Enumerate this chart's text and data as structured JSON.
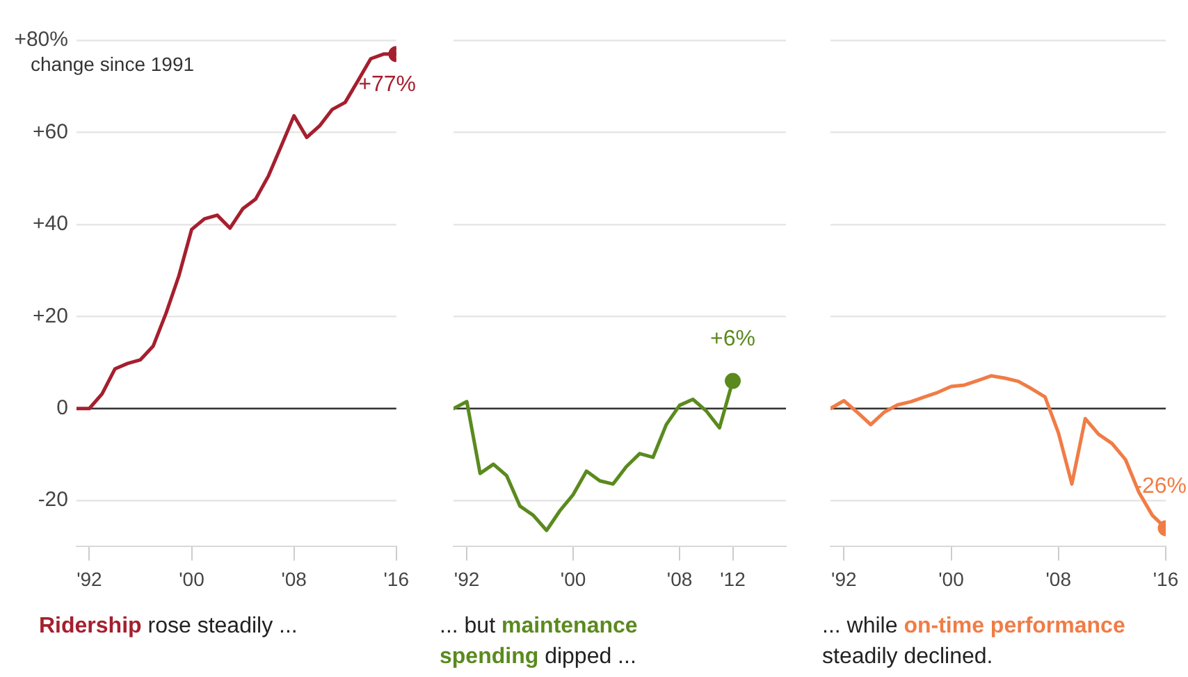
{
  "chart_data": [
    {
      "type": "line",
      "annotations": [
        "rose steadily ..."
      ],
      "ylabel": "change since 1991",
      "x": [
        1991,
        1992,
        1993,
        1994,
        1995,
        1996,
        1997,
        1998,
        1999,
        2000,
        2001,
        2002,
        2003,
        2004,
        2005,
        2006,
        2007,
        2008,
        2009,
        2010,
        2011,
        2012,
        2013,
        2014,
        2015,
        2016
      ],
      "series": [
        {
          "name": "Ridership",
          "color": "#a51f2e",
          "values": [
            0,
            0,
            3.2,
            8.6,
            9.8,
            10.6,
            13.6,
            20.7,
            28.8,
            38.9,
            41.2,
            42,
            39.2,
            43.4,
            45.5,
            50.5,
            57,
            63.6,
            58.9,
            61.4,
            65,
            66.5,
            71.2,
            76,
            77,
            77
          ],
          "value_labels": [
            null,
            null,
            null,
            null,
            null,
            null,
            null,
            null,
            null,
            null,
            null,
            null,
            null,
            null,
            null,
            null,
            null,
            null,
            null,
            null,
            null,
            null,
            null,
            null,
            null,
            "+77%"
          ]
        }
      ],
      "xlim": [
        1991,
        2016
      ],
      "xticks": [
        {
          "value": 1992,
          "label": "'92"
        },
        {
          "value": 2000,
          "label": "'00"
        },
        {
          "value": 2008,
          "label": "'08"
        },
        {
          "value": 2016,
          "label": "'16"
        }
      ],
      "ylim": [
        -30,
        80
      ],
      "yticks": [
        {
          "value": -20,
          "label": "-20"
        },
        0,
        {
          "value": 20,
          "label": "+20"
        },
        {
          "value": 40,
          "label": "+40"
        },
        {
          "value": 60,
          "label": "+60"
        },
        {
          "value": 80,
          "label": "+80%"
        }
      ],
      "grid": "y",
      "ref_lines": [
        {
          "axis": "y",
          "value": 0,
          "color": "#333333"
        }
      ]
    },
    {
      "type": "line",
      "annotations": [
        "... but",
        "dipped ..."
      ],
      "x": [
        1991,
        1992,
        1993,
        1994,
        1995,
        1996,
        1997,
        1998,
        1999,
        2000,
        2001,
        2002,
        2003,
        2004,
        2005,
        2006,
        2007,
        2008,
        2009,
        2010,
        2011,
        2012
      ],
      "series": [
        {
          "name": "maintenance spending",
          "color": "#5a8a1e",
          "values": [
            0,
            1.5,
            -14.1,
            -12.1,
            -14.6,
            -21.2,
            -23.2,
            -26.5,
            -22.2,
            -18.7,
            -13.6,
            -15.7,
            -16.4,
            -12.6,
            -9.8,
            -10.6,
            -3.5,
            0.7,
            2,
            -0.5,
            -4.2,
            6
          ],
          "value_labels": [
            null,
            null,
            null,
            null,
            null,
            null,
            null,
            null,
            null,
            null,
            null,
            null,
            null,
            null,
            null,
            null,
            null,
            null,
            null,
            null,
            null,
            "+6%"
          ]
        }
      ],
      "xlim": [
        1991,
        2016
      ],
      "xticks": [
        {
          "value": 1992,
          "label": "'92"
        },
        {
          "value": 2000,
          "label": "'00"
        },
        {
          "value": 2008,
          "label": "'08"
        },
        {
          "value": 2012,
          "label": "'12"
        }
      ],
      "ylim": [
        -30,
        80
      ],
      "yticks": [
        -20,
        0,
        20,
        40,
        60,
        80
      ],
      "tick_labels": "x",
      "grid": "y",
      "ref_lines": [
        {
          "axis": "y",
          "value": 0,
          "color": "#333333"
        }
      ]
    },
    {
      "type": "line",
      "annotations": [
        "... while",
        "steadily declined."
      ],
      "x": [
        1991,
        1992,
        1993,
        1994,
        1995,
        1996,
        1997,
        1998,
        1999,
        2000,
        2001,
        2002,
        2003,
        2004,
        2005,
        2006,
        2007,
        2008,
        2009,
        2010,
        2011,
        2012,
        2013,
        2014,
        2015,
        2016
      ],
      "series": [
        {
          "name": "on-time performance",
          "color": "#f07c46",
          "values": [
            0,
            1.7,
            -0.8,
            -3.5,
            -0.8,
            0.8,
            1.5,
            2.5,
            3.5,
            4.8,
            5.1,
            6.1,
            7.1,
            6.6,
            5.9,
            4.3,
            2.5,
            -5.3,
            -16.4,
            -2.2,
            -5.6,
            -7.6,
            -11.1,
            -18.2,
            -23.2,
            -26
          ],
          "value_labels": [
            null,
            null,
            null,
            null,
            null,
            null,
            null,
            null,
            null,
            null,
            null,
            null,
            null,
            null,
            null,
            null,
            null,
            null,
            null,
            null,
            null,
            null,
            null,
            null,
            null,
            "-26%"
          ]
        }
      ],
      "xlim": [
        1991,
        2016
      ],
      "xticks": [
        {
          "value": 1992,
          "label": "'92"
        },
        {
          "value": 2000,
          "label": "'00"
        },
        {
          "value": 2008,
          "label": "'08"
        },
        {
          "value": 2016,
          "label": "'16"
        }
      ],
      "ylim": [
        -30,
        80
      ],
      "yticks": [
        -20,
        0,
        20,
        40,
        60,
        80
      ],
      "tick_labels": "x",
      "grid": "y",
      "ref_lines": [
        {
          "axis": "y",
          "value": 0,
          "color": "#333333"
        }
      ]
    }
  ]
}
